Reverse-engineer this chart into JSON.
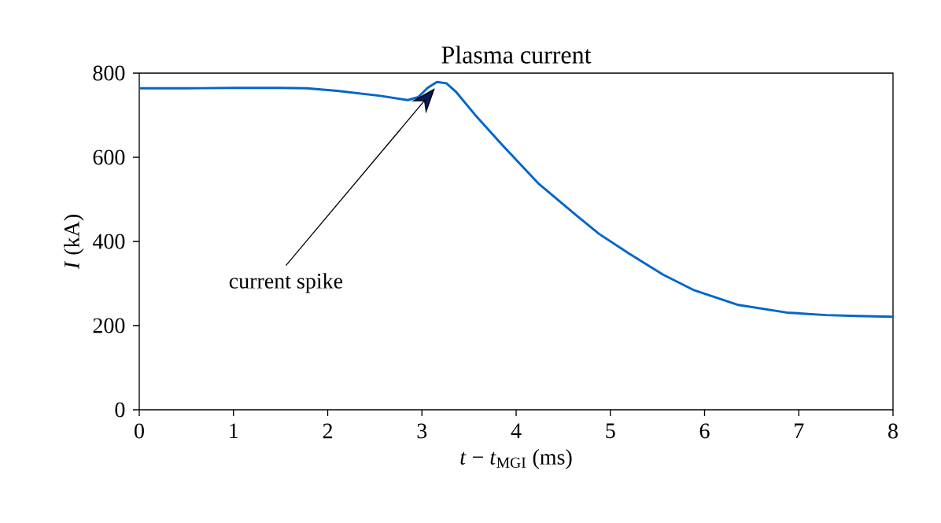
{
  "chart_data": {
    "type": "line",
    "title": "Plasma current",
    "xlabel": "*t* − *t*$_{MGI}$ (ms)",
    "ylabel": "*I* (kA)",
    "series": [
      {
        "color": "#0066cc",
        "x": [
          0,
          0.5,
          1.0,
          1.2,
          1.5,
          1.78,
          2.1,
          2.56,
          2.85,
          2.96,
          3.06,
          3.16,
          3.26,
          3.36,
          3.56,
          3.85,
          4.24,
          4.66,
          4.88,
          5.2,
          5.56,
          5.88,
          6.36,
          6.87,
          7.29,
          7.61,
          8
        ],
        "values": [
          764,
          764,
          765,
          765,
          765,
          764,
          758,
          746,
          736,
          743,
          765,
          779,
          776,
          756,
          702,
          630,
          537,
          458,
          418,
          371,
          321,
          285,
          249,
          231,
          225,
          223,
          221
        ]
      }
    ],
    "xlim": [
      0,
      8
    ],
    "ylim": [
      0,
      800
    ],
    "xticks": [
      0,
      1,
      2,
      3,
      4,
      5,
      6,
      7,
      8
    ],
    "yticks": [
      0,
      200,
      400,
      600,
      800
    ],
    "annotations": [
      "current spike"
    ],
    "grid": false,
    "marker": "none",
    "line_style": "solid"
  }
}
